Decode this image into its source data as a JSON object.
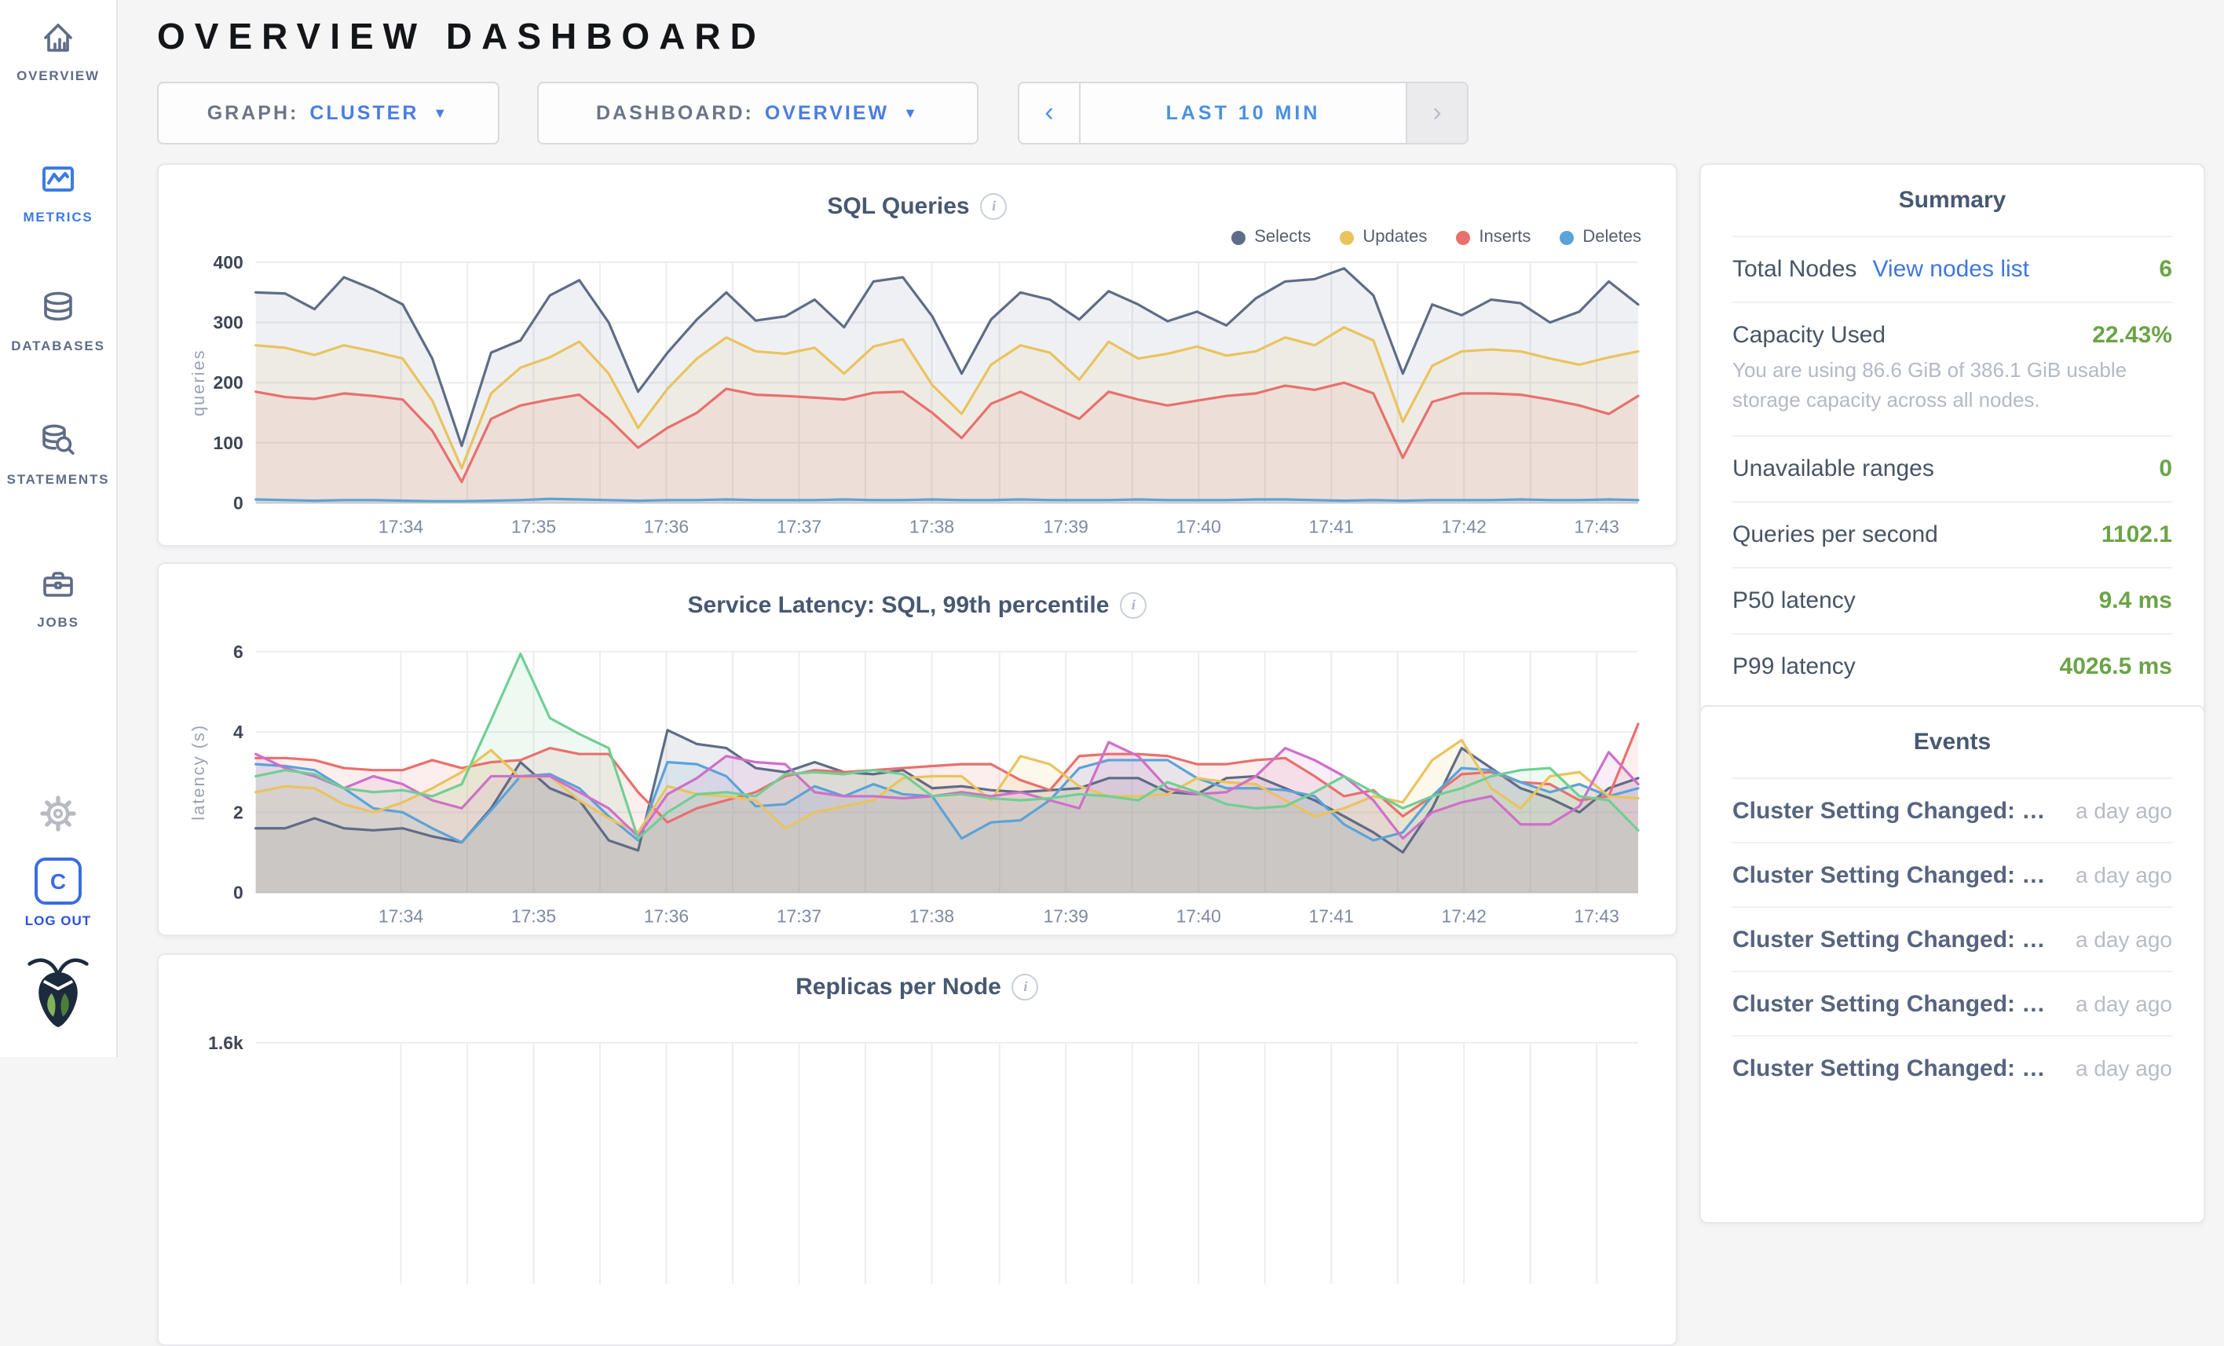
{
  "theme": {
    "accent_blue": "#3b7ce2",
    "link_blue": "#3e77e0",
    "value_green": "#6ba446",
    "text_dark": "#475872",
    "muted_gray": "#b3b9c4"
  },
  "sidebar": {
    "items": [
      {
        "label": "OVERVIEW",
        "icon": "home-icon",
        "active": false
      },
      {
        "label": "METRICS",
        "icon": "metrics-icon",
        "active": true
      },
      {
        "label": "DATABASES",
        "icon": "databases-icon",
        "active": false
      },
      {
        "label": "STATEMENTS",
        "icon": "statements-icon",
        "active": false
      },
      {
        "label": "JOBS",
        "icon": "jobs-icon",
        "active": false
      }
    ],
    "logout_monogram": "C",
    "logout_label": "LOG OUT"
  },
  "header": {
    "title": "OVERVIEW DASHBOARD"
  },
  "controls": {
    "graph": {
      "label": "GRAPH:",
      "value": "CLUSTER"
    },
    "dashboard": {
      "label": "DASHBOARD:",
      "value": "OVERVIEW"
    },
    "time_range": {
      "prev": "‹",
      "label": "LAST 10 MIN",
      "next": "›"
    }
  },
  "summary": {
    "title": "Summary",
    "rows": [
      {
        "label": "Total Nodes",
        "link": "View nodes list",
        "value": "6"
      },
      {
        "label": "Capacity Used",
        "value": "22.43%",
        "note": "You are using 86.6 GiB of 386.1 GiB usable storage capacity across all nodes."
      },
      {
        "label": "Unavailable ranges",
        "value": "0"
      },
      {
        "label": "Queries per second",
        "value": "1102.1"
      },
      {
        "label": "P50 latency",
        "value": "9.4 ms"
      },
      {
        "label": "P99 latency",
        "value": "4026.5 ms"
      }
    ]
  },
  "events": {
    "title": "Events",
    "items": [
      {
        "text": "Cluster Setting Changed: U...",
        "time": "a day ago"
      },
      {
        "text": "Cluster Setting Changed: U...",
        "time": "a day ago"
      },
      {
        "text": "Cluster Setting Changed: U...",
        "time": "a day ago"
      },
      {
        "text": "Cluster Setting Changed: U...",
        "time": "a day ago"
      },
      {
        "text": "Cluster Setting Changed: U...",
        "time": "a day ago"
      }
    ]
  },
  "chart_data": [
    {
      "type": "area",
      "title": "SQL Queries",
      "ylabel": "queries",
      "ylim": [
        0,
        400
      ],
      "fill_opacity": 0.1,
      "legend_position": "top-right",
      "grid": true,
      "yticks": [
        {
          "v": 0,
          "label": "0"
        },
        {
          "v": 100,
          "label": "100"
        },
        {
          "v": 200,
          "label": "200"
        },
        {
          "v": 300,
          "label": "300"
        },
        {
          "v": 400,
          "label": "400"
        }
      ],
      "x_labels": [
        {
          "text": "17:34",
          "f": 0.105
        },
        {
          "text": "17:35",
          "f": 0.201
        },
        {
          "text": "17:36",
          "f": 0.297
        },
        {
          "text": "17:37",
          "f": 0.393
        },
        {
          "text": "17:38",
          "f": 0.489
        },
        {
          "text": "17:39",
          "f": 0.586
        },
        {
          "text": "17:40",
          "f": 0.682
        },
        {
          "text": "17:41",
          "f": 0.778
        },
        {
          "text": "17:42",
          "f": 0.874
        },
        {
          "text": "17:43",
          "f": 0.97
        }
      ],
      "x_grid_f": [
        0.105,
        0.153,
        0.201,
        0.249,
        0.297,
        0.345,
        0.393,
        0.441,
        0.489,
        0.538,
        0.586,
        0.634,
        0.682,
        0.73,
        0.778,
        0.826,
        0.874,
        0.922,
        0.97
      ],
      "series": [
        {
          "name": "Selects",
          "color": "#5f6c87",
          "values": [
            350,
            348,
            322,
            375,
            355,
            330,
            240,
            95,
            250,
            270,
            345,
            370,
            300,
            185,
            250,
            305,
            350,
            303,
            310,
            338,
            292,
            368,
            375,
            310,
            215,
            305,
            350,
            338,
            305,
            352,
            330,
            302,
            318,
            295,
            340,
            368,
            372,
            390,
            345,
            215,
            330,
            312,
            338,
            332,
            300,
            318,
            368,
            330
          ]
        },
        {
          "name": "Updates",
          "color": "#eac35e",
          "values": [
            262,
            258,
            246,
            262,
            252,
            240,
            170,
            58,
            182,
            225,
            242,
            268,
            215,
            125,
            190,
            240,
            275,
            252,
            248,
            258,
            215,
            260,
            272,
            196,
            148,
            230,
            262,
            250,
            205,
            268,
            240,
            248,
            260,
            245,
            252,
            275,
            262,
            292,
            270,
            135,
            228,
            252,
            255,
            252,
            240,
            230,
            242,
            252
          ]
        },
        {
          "name": "Inserts",
          "color": "#e8706d",
          "values": [
            185,
            176,
            173,
            182,
            178,
            172,
            120,
            35,
            140,
            162,
            172,
            180,
            140,
            92,
            125,
            150,
            190,
            180,
            178,
            175,
            172,
            183,
            185,
            150,
            108,
            165,
            185,
            162,
            140,
            185,
            172,
            162,
            170,
            178,
            182,
            195,
            188,
            200,
            182,
            75,
            168,
            182,
            182,
            180,
            172,
            162,
            148,
            178
          ]
        },
        {
          "name": "Deletes",
          "color": "#5ba3d9",
          "values": [
            6,
            5,
            4,
            5,
            5,
            4,
            3,
            3,
            4,
            5,
            7,
            6,
            5,
            4,
            5,
            5,
            6,
            5,
            5,
            5,
            6,
            5,
            5,
            6,
            5,
            5,
            6,
            5,
            5,
            5,
            6,
            5,
            5,
            5,
            6,
            6,
            5,
            4,
            5,
            4,
            5,
            5,
            5,
            6,
            5,
            5,
            6,
            5
          ]
        }
      ]
    },
    {
      "type": "area",
      "title": "Service Latency: SQL, 99th percentile",
      "ylabel": "latency (s)",
      "ylim": [
        0,
        6
      ],
      "fill_opacity": 0.12,
      "legend_position": "none",
      "grid": true,
      "yticks": [
        {
          "v": 0,
          "label": "0"
        },
        {
          "v": 2,
          "label": "2"
        },
        {
          "v": 4,
          "label": "4"
        },
        {
          "v": 6,
          "label": "6"
        }
      ],
      "x_labels": [
        {
          "text": "17:34",
          "f": 0.105
        },
        {
          "text": "17:35",
          "f": 0.201
        },
        {
          "text": "17:36",
          "f": 0.297
        },
        {
          "text": "17:37",
          "f": 0.393
        },
        {
          "text": "17:38",
          "f": 0.489
        },
        {
          "text": "17:39",
          "f": 0.586
        },
        {
          "text": "17:40",
          "f": 0.682
        },
        {
          "text": "17:41",
          "f": 0.778
        },
        {
          "text": "17:42",
          "f": 0.874
        },
        {
          "text": "17:43",
          "f": 0.97
        }
      ],
      "x_grid_f": [
        0.105,
        0.153,
        0.201,
        0.249,
        0.297,
        0.345,
        0.393,
        0.441,
        0.489,
        0.538,
        0.586,
        0.634,
        0.682,
        0.73,
        0.778,
        0.826,
        0.874,
        0.922,
        0.97
      ],
      "series": [
        {
          "color": "#5f6c87",
          "values": [
            1.6,
            1.6,
            1.85,
            1.6,
            1.55,
            1.6,
            1.4,
            1.25,
            2.1,
            3.25,
            2.6,
            2.3,
            1.3,
            1.05,
            4.05,
            3.7,
            3.6,
            3.1,
            3.0,
            3.25,
            3.0,
            2.95,
            3.05,
            2.6,
            2.65,
            2.55,
            2.5,
            2.55,
            2.6,
            2.85,
            2.85,
            2.5,
            2.45,
            2.85,
            2.9,
            2.6,
            2.3,
            1.9,
            1.5,
            1.0,
            2.1,
            3.6,
            3.1,
            2.6,
            2.35,
            2.0,
            2.6,
            2.85
          ]
        },
        {
          "color": "#e8706d",
          "values": [
            3.35,
            3.35,
            3.3,
            3.1,
            3.05,
            3.05,
            3.3,
            3.1,
            3.25,
            3.3,
            3.6,
            3.45,
            3.45,
            2.5,
            1.75,
            2.1,
            2.3,
            2.5,
            2.9,
            3.05,
            3.0,
            3.05,
            3.1,
            3.15,
            3.2,
            3.2,
            2.8,
            2.55,
            3.4,
            3.45,
            3.45,
            3.4,
            3.2,
            3.2,
            3.3,
            3.35,
            2.9,
            2.4,
            2.55,
            1.9,
            2.4,
            2.95,
            3.0,
            2.75,
            2.7,
            2.3,
            2.4,
            4.2
          ]
        },
        {
          "color": "#5ba3d9",
          "values": [
            3.2,
            3.15,
            3.05,
            2.6,
            2.1,
            2.0,
            1.6,
            1.25,
            2.05,
            2.9,
            2.95,
            2.6,
            1.9,
            1.3,
            3.25,
            3.2,
            2.9,
            2.15,
            2.2,
            2.65,
            2.4,
            2.7,
            2.45,
            2.4,
            1.35,
            1.75,
            1.8,
            2.3,
            3.1,
            3.3,
            3.3,
            3.3,
            2.85,
            2.6,
            2.6,
            2.55,
            2.4,
            1.7,
            1.3,
            1.5,
            2.4,
            3.1,
            3.05,
            2.75,
            2.5,
            2.7,
            2.4,
            2.6
          ]
        },
        {
          "color": "#eac35e",
          "values": [
            2.5,
            2.65,
            2.6,
            2.2,
            2.0,
            2.25,
            2.6,
            3.0,
            3.55,
            2.85,
            2.9,
            2.3,
            1.85,
            1.5,
            2.65,
            2.45,
            2.4,
            2.3,
            1.6,
            2.0,
            2.15,
            2.3,
            2.85,
            2.9,
            2.9,
            2.3,
            3.4,
            3.2,
            2.65,
            2.4,
            2.4,
            2.45,
            2.85,
            2.75,
            2.7,
            2.3,
            1.9,
            2.1,
            2.4,
            2.25,
            3.3,
            3.8,
            2.6,
            2.1,
            2.9,
            3.0,
            2.4,
            2.35
          ]
        },
        {
          "color": "#cf6fc9",
          "values": [
            3.45,
            3.1,
            2.9,
            2.6,
            2.9,
            2.7,
            2.3,
            2.1,
            2.9,
            2.9,
            2.9,
            2.5,
            2.1,
            1.4,
            2.45,
            2.85,
            3.4,
            3.25,
            3.2,
            2.5,
            2.4,
            2.4,
            2.35,
            2.4,
            2.5,
            2.4,
            2.5,
            2.3,
            2.1,
            3.75,
            3.4,
            2.6,
            2.45,
            2.5,
            2.9,
            3.6,
            3.3,
            2.9,
            2.3,
            1.35,
            2.0,
            2.25,
            2.4,
            1.7,
            1.7,
            2.15,
            3.5,
            2.7
          ]
        },
        {
          "color": "#70cf94",
          "values": [
            2.9,
            3.05,
            2.95,
            2.6,
            2.5,
            2.55,
            2.4,
            2.7,
            4.3,
            5.95,
            4.35,
            3.95,
            3.6,
            1.35,
            2.0,
            2.45,
            2.5,
            2.4,
            2.95,
            3.0,
            2.95,
            3.05,
            2.95,
            2.4,
            2.45,
            2.35,
            2.3,
            2.35,
            2.45,
            2.4,
            2.3,
            2.75,
            2.5,
            2.2,
            2.1,
            2.15,
            2.5,
            2.9,
            2.5,
            2.1,
            2.4,
            2.6,
            2.9,
            3.05,
            3.1,
            2.4,
            2.3,
            1.55
          ]
        }
      ]
    },
    {
      "type": "area",
      "title": "Replicas per Node",
      "ylim": [
        0,
        1600
      ],
      "fill_opacity": 0.1,
      "legend_position": "none",
      "grid": true,
      "yticks": [
        {
          "v": 1600,
          "label": "1.6k"
        }
      ],
      "x_labels": [],
      "x_grid_f": [
        0.105,
        0.153,
        0.201,
        0.249,
        0.297,
        0.345,
        0.393,
        0.441,
        0.489,
        0.538,
        0.586,
        0.634,
        0.682,
        0.73,
        0.778,
        0.826,
        0.874,
        0.922,
        0.97
      ],
      "series": []
    }
  ]
}
